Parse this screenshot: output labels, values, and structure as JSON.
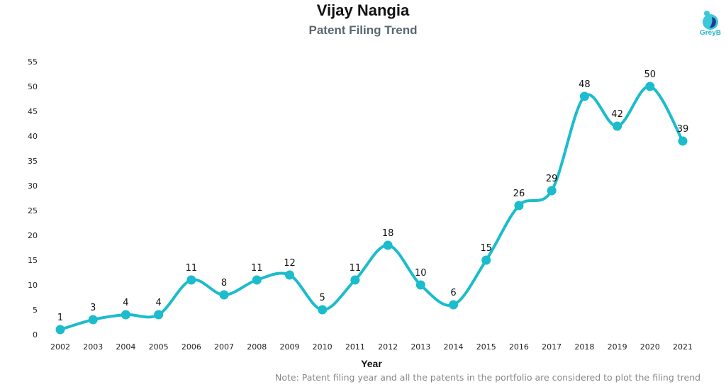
{
  "header": {
    "title": "Vijay Nangia",
    "subtitle": "Patent Filing Trend",
    "logo_text": "GreyB"
  },
  "note": "Note: Patent filing year and all the patents in the portfolio are considered to plot the filing trend",
  "colors": {
    "line": "#1bbccc",
    "logo_light": "#3cc8d8",
    "logo_dark": "#233a8f"
  },
  "chart_data": {
    "type": "line",
    "title": "Vijay Nangia",
    "subtitle": "Patent Filing Trend",
    "xlabel": "Year",
    "ylabel": "",
    "ylim": [
      0,
      55
    ],
    "yticks": [
      "0",
      "5",
      "10",
      "15",
      "20",
      "25",
      "30",
      "35",
      "40",
      "45",
      "50",
      "55"
    ],
    "grid": false,
    "categories": [
      "2002",
      "2003",
      "2004",
      "2005",
      "2006",
      "2007",
      "2008",
      "2009",
      "2010",
      "2011",
      "2012",
      "2013",
      "2014",
      "2015",
      "2016",
      "2017",
      "2018",
      "2019",
      "2020",
      "2021"
    ],
    "series": [
      {
        "name": "Patent filings",
        "values": [
          1,
          3,
          4,
          4,
          11,
          8,
          11,
          12,
          5,
          11,
          18,
          10,
          6,
          15,
          26,
          29,
          48,
          42,
          50,
          39
        ],
        "labels": [
          "1",
          "3",
          "4",
          "4",
          "11",
          "8",
          "11",
          "12",
          "5",
          "11",
          "18",
          "10",
          "6",
          "15",
          "26",
          "29",
          "48",
          "42",
          "50",
          "39"
        ]
      }
    ]
  }
}
